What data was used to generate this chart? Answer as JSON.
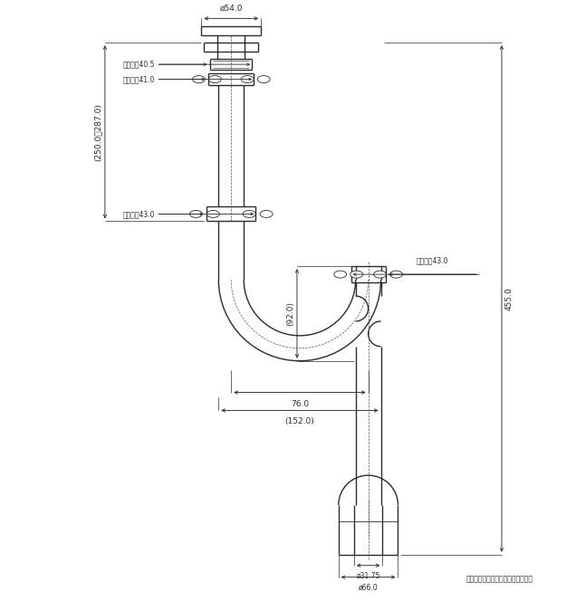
{
  "bg_color": "#ffffff",
  "line_color": "#2a2a2a",
  "dim_color": "#2a2a2a",
  "center_color": "#555555",
  "lw": 1.0,
  "lt": 0.6,
  "lc": 0.5,
  "annotations": {
    "phi54": "ø54.0",
    "hex40_5": "六角対邀40.5",
    "hex41": "六角対邀41.0",
    "hex43_left": "六角対邀43.0",
    "hex43_right": "六角対邀43.0",
    "dim_250_287": "(250.0～287.0)",
    "dim_92": "(92.0)",
    "dim_76": "76.0",
    "dim_152": "(152.0)",
    "dim_455": "455.0",
    "phi31_75": "ø31.75",
    "phi66": "ø66.0",
    "note": "注：（）内寸法は参考寸法である。"
  }
}
